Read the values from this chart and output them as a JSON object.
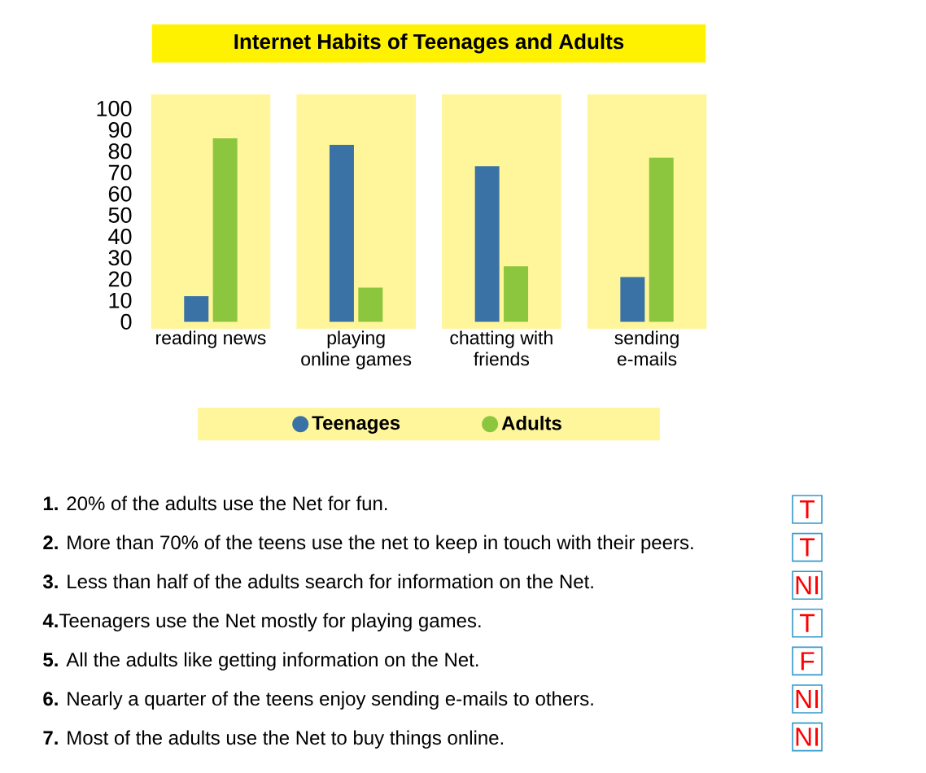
{
  "chart_data": {
    "type": "bar",
    "title": "Internet Habits of Teenages and Adults",
    "categories": [
      "reading news",
      "playing online games",
      "chatting with friends",
      "sending e-mails"
    ],
    "series": [
      {
        "name": "Teenages",
        "color": "#3a72a6",
        "values": [
          12,
          83,
          73,
          21
        ]
      },
      {
        "name": "Adults",
        "color": "#8cc63f",
        "values": [
          86,
          16,
          26,
          77
        ]
      }
    ],
    "ylim": [
      0,
      100
    ],
    "yticks": [
      0,
      10,
      20,
      30,
      40,
      50,
      60,
      70,
      80,
      90,
      100
    ],
    "legend": "bottom",
    "bands": [
      {
        "axis": "x",
        "from": "reading news",
        "to": "reading news",
        "color": "#fff59a"
      },
      {
        "axis": "x",
        "from": "playing online games",
        "to": "playing online games",
        "color": "#fff59a"
      },
      {
        "axis": "x",
        "from": "chatting with friends",
        "to": "chatting with friends",
        "color": "#fff59a"
      },
      {
        "axis": "x",
        "from": "sending e-mails",
        "to": "sending e-mails",
        "color": "#fff59a"
      }
    ],
    "annotations": [
      "**1.** 20% of the adults use the Net for fun.",
      "T",
      "**2.** More than 70% of the teens use the net to keep in touch with their peers.",
      "T",
      "**3.** Less than half of the adults search for information on the Net.",
      "NI",
      "**4.**Teenagers use the Net mostly for playing games.",
      "T",
      "**5.** All the adults like getting information on the Net.",
      "F",
      "**6.** Nearly a quarter of the teens enjoy sending e-mails to others.",
      "NI",
      "**7.** Most of the adults use the Net to buy things online.",
      "NI"
    ]
  }
}
